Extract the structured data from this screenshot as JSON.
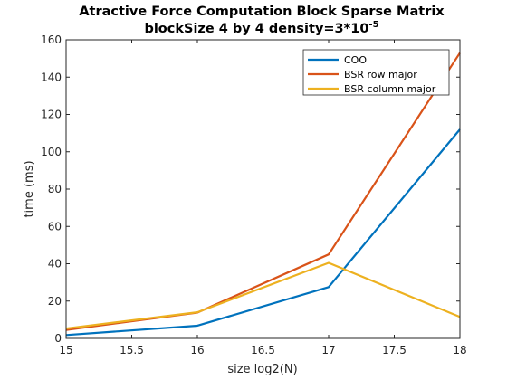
{
  "chart_data": {
    "type": "line",
    "title_line1": "Atractive Force Computation Block Sparse Matrix",
    "title_line2_prefix": "blockSize 4 by 4 density=3*10",
    "title_line2_sup": "-5",
    "xlabel": "size log2(N)",
    "ylabel": "time (ms)",
    "xlim": [
      15,
      18
    ],
    "ylim": [
      0,
      160
    ],
    "xticks": [
      "15",
      "15.5",
      "16",
      "16.5",
      "17",
      "17.5",
      "18"
    ],
    "yticks": [
      "0",
      "20",
      "40",
      "60",
      "80",
      "100",
      "120",
      "140",
      "160"
    ],
    "grid": false,
    "legend_position": "top-right",
    "x": [
      15,
      16,
      17,
      18
    ],
    "series": [
      {
        "name": "COO",
        "color": "#0072BD",
        "values": [
          1.8,
          6.8,
          27.5,
          112
        ]
      },
      {
        "name": "BSR row major",
        "color": "#D95319",
        "values": [
          4.5,
          13.8,
          45,
          153
        ]
      },
      {
        "name": "BSR column major",
        "color": "#EDB120",
        "values": [
          5.3,
          14,
          40.5,
          11.5
        ]
      }
    ]
  }
}
